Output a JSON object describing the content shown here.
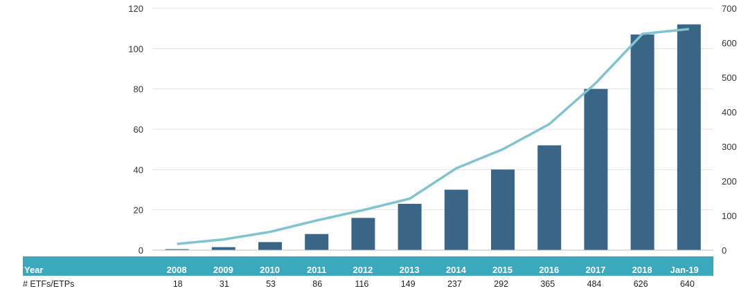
{
  "chart_data": {
    "type": "bar",
    "title": "",
    "categories": [
      "2008",
      "2009",
      "2010",
      "2011",
      "2012",
      "2013",
      "2014",
      "2015",
      "2016",
      "2017",
      "2018",
      "Jan-19"
    ],
    "series": [
      {
        "axis": "left",
        "type": "bar",
        "color": "#3b6587",
        "values": [
          0.5,
          1.5,
          4,
          8,
          16,
          23,
          30,
          40,
          52,
          80,
          107,
          112
        ]
      },
      {
        "name": "# ETFs/ETPs",
        "axis": "right",
        "type": "line",
        "color": "#7fc4d1",
        "values": [
          18,
          31,
          53,
          86,
          116,
          149,
          237,
          292,
          365,
          484,
          626,
          640
        ]
      }
    ],
    "y_left": {
      "lim": [
        0,
        120
      ],
      "ticks": [
        0,
        20,
        40,
        60,
        80,
        100,
        120
      ]
    },
    "y_right": {
      "lim": [
        0,
        700
      ],
      "ticks": [
        0,
        100,
        200,
        300,
        400,
        500,
        600,
        700
      ]
    },
    "grid": true,
    "table": {
      "header_label": "Year",
      "row_label": "# ETFs/ETPs",
      "header_color": "#3aa9bd"
    }
  }
}
